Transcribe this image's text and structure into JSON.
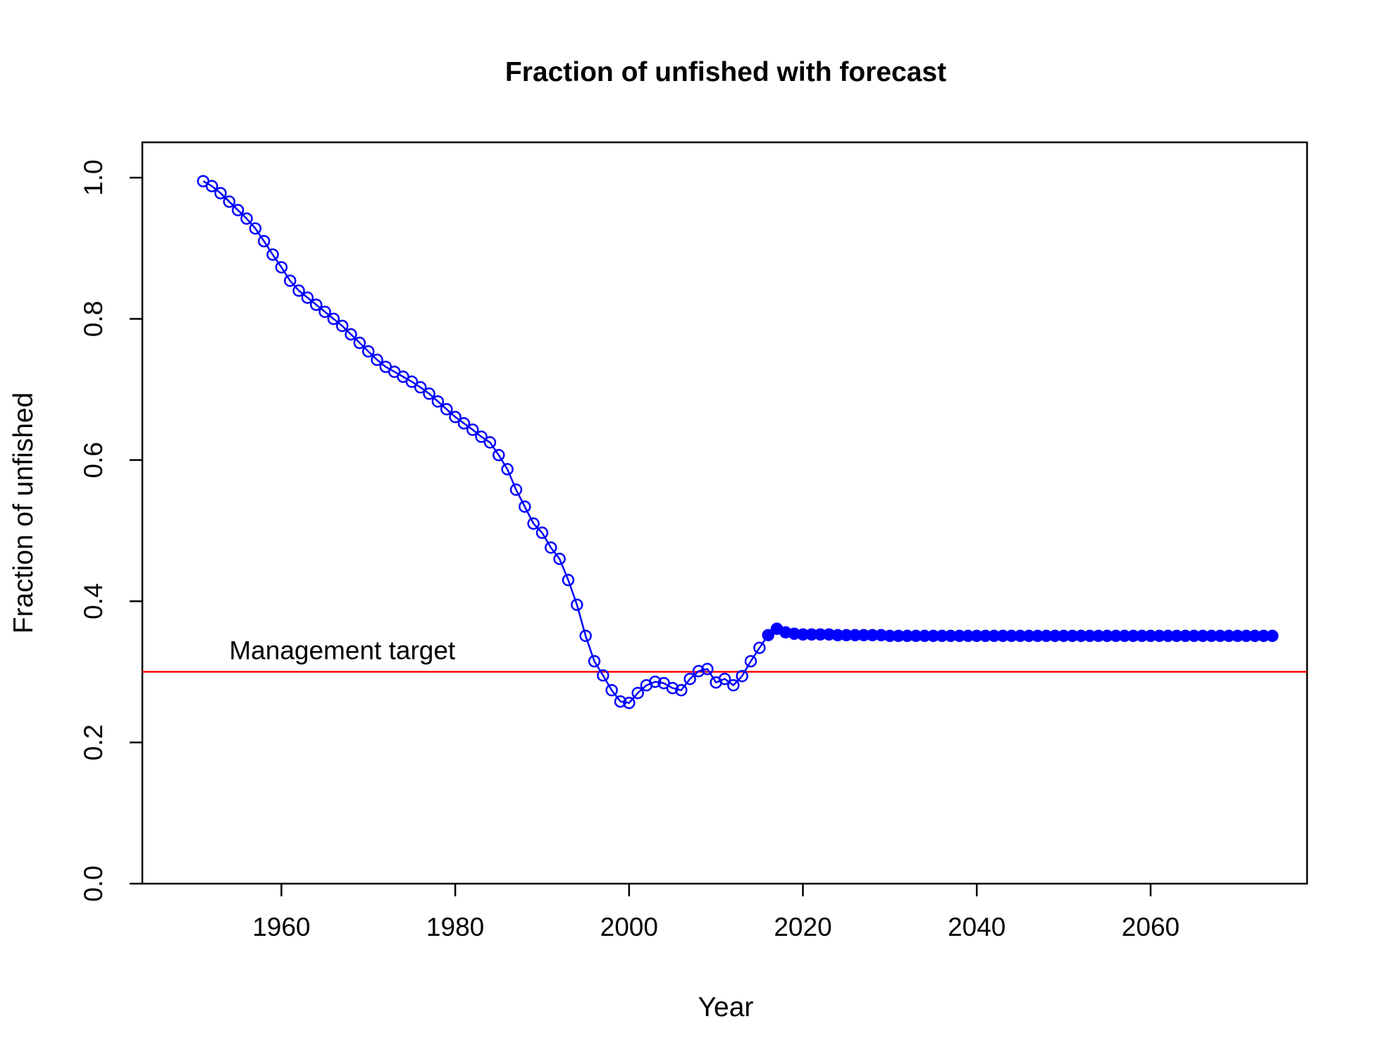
{
  "chart_data": {
    "type": "line",
    "title": "Fraction of unfished with forecast",
    "xlabel": "Year",
    "ylabel": "Fraction of unfished",
    "xlim": [
      1944,
      2078
    ],
    "ylim": [
      0,
      1.05
    ],
    "x_ticks": [
      1960,
      1980,
      2000,
      2020,
      2040,
      2060
    ],
    "y_ticks": [
      0.0,
      0.2,
      0.4,
      0.6,
      0.8,
      1.0
    ],
    "x_tick_labels": [
      "1960",
      "1980",
      "2000",
      "2020",
      "2040",
      "2060"
    ],
    "y_tick_labels": [
      "0.0",
      "0.2",
      "0.4",
      "0.6",
      "0.8",
      "1.0"
    ],
    "grid": false,
    "series": [
      {
        "marker": "open-circle",
        "color": "#0000ff",
        "x": [
          1951,
          1952,
          1953,
          1954,
          1955,
          1956,
          1957,
          1958,
          1959,
          1960,
          1961,
          1962,
          1963,
          1964,
          1965,
          1966,
          1967,
          1968,
          1969,
          1970,
          1971,
          1972,
          1973,
          1974,
          1975,
          1976,
          1977,
          1978,
          1979,
          1980,
          1981,
          1982,
          1983,
          1984,
          1985,
          1986,
          1987,
          1988,
          1989,
          1990,
          1991,
          1992,
          1993,
          1994,
          1995,
          1996,
          1997,
          1998,
          1999,
          2000,
          2001,
          2002,
          2003,
          2004,
          2005,
          2006,
          2007,
          2008,
          2009,
          2010,
          2011,
          2012,
          2013,
          2014,
          2015
        ],
        "y": [
          0.995,
          0.988,
          0.978,
          0.966,
          0.954,
          0.942,
          0.928,
          0.91,
          0.891,
          0.873,
          0.854,
          0.84,
          0.83,
          0.82,
          0.81,
          0.8,
          0.79,
          0.778,
          0.766,
          0.754,
          0.742,
          0.732,
          0.725,
          0.718,
          0.711,
          0.703,
          0.694,
          0.683,
          0.672,
          0.661,
          0.652,
          0.643,
          0.633,
          0.625,
          0.607,
          0.587,
          0.558,
          0.534,
          0.51,
          0.497,
          0.476,
          0.46,
          0.43,
          0.395,
          0.351,
          0.315,
          0.295,
          0.274,
          0.258,
          0.256,
          0.27,
          0.281,
          0.286,
          0.284,
          0.277,
          0.274,
          0.29,
          0.301,
          0.304,
          0.285,
          0.29,
          0.281,
          0.294,
          0.315,
          0.334
        ]
      },
      {
        "marker": "filled-circle",
        "color": "#0000ff",
        "x": [
          2016,
          2017,
          2018,
          2019,
          2020,
          2021,
          2022,
          2023,
          2024,
          2025,
          2026,
          2027,
          2028,
          2029,
          2030,
          2031,
          2032,
          2033,
          2034,
          2035,
          2036,
          2037,
          2038,
          2039,
          2040,
          2041,
          2042,
          2043,
          2044,
          2045,
          2046,
          2047,
          2048,
          2049,
          2050,
          2051,
          2052,
          2053,
          2054,
          2055,
          2056,
          2057,
          2058,
          2059,
          2060,
          2061,
          2062,
          2063,
          2064,
          2065,
          2066,
          2067,
          2068,
          2069,
          2070,
          2071,
          2072,
          2073,
          2074
        ],
        "y": [
          0.352,
          0.361,
          0.356,
          0.354,
          0.353,
          0.353,
          0.353,
          0.353,
          0.352,
          0.352,
          0.352,
          0.352,
          0.352,
          0.352,
          0.351,
          0.351,
          0.351,
          0.351,
          0.351,
          0.351,
          0.351,
          0.351,
          0.351,
          0.351,
          0.351,
          0.351,
          0.351,
          0.351,
          0.351,
          0.351,
          0.351,
          0.351,
          0.351,
          0.351,
          0.351,
          0.351,
          0.351,
          0.351,
          0.351,
          0.351,
          0.351,
          0.351,
          0.351,
          0.351,
          0.351,
          0.351,
          0.351,
          0.351,
          0.351,
          0.351,
          0.351,
          0.351,
          0.351,
          0.351,
          0.351,
          0.351,
          0.351,
          0.351,
          0.351
        ]
      }
    ],
    "reference_line": {
      "y": 0.3,
      "color": "#ff0000",
      "label": "Management target",
      "label_x": 1954
    }
  }
}
